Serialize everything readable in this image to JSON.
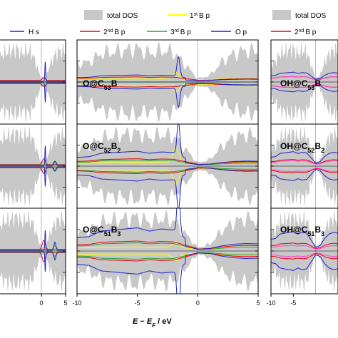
{
  "chart_data": {
    "type": "line",
    "xlabel": {
      "pre": "E",
      "dash": " − ",
      "e": "E",
      "sub": "F",
      "unit": " / eV"
    },
    "legend_left": {
      "row1": {
        "total": "",
        "hs": "H s"
      }
    },
    "legend_mid": {
      "total": "total DOS",
      "b1": {
        "pre": "1",
        "sup": "st",
        "post": "B p"
      },
      "b2": {
        "pre": "2",
        "sup": "nd",
        "post": "B p"
      },
      "b3": {
        "pre": "3",
        "sup": "rd",
        "post": "B p"
      },
      "op": "O p"
    },
    "legend_right": {
      "total": "total DOS",
      "b2": {
        "pre": "2",
        "sup": "nd",
        "post": "B p"
      }
    },
    "series_colors": {
      "total": "#c8c8c8",
      "b1": "#ffff00",
      "b2": "#e8000b",
      "b3": "#2ca02c",
      "op": "#1f1fcc",
      "hs": "#1f1fcc",
      "pink": "#ff44cc"
    },
    "columns": [
      {
        "name": "left",
        "xlim": [
          -10,
          5
        ],
        "ticks": [
          {
            "v": 0,
            "l": "0"
          },
          {
            "v": 5,
            "l": "5"
          }
        ]
      },
      {
        "name": "mid",
        "xlim": [
          -10,
          5
        ],
        "ticks": [
          {
            "v": -10,
            "l": "-10"
          },
          {
            "v": -5,
            "l": "-5"
          },
          {
            "v": 0,
            "l": "0"
          },
          {
            "v": 5,
            "l": "5"
          }
        ]
      },
      {
        "name": "right",
        "xlim": [
          -10,
          5
        ],
        "ticks": [
          {
            "v": -10,
            "l": "-10"
          },
          {
            "v": -5,
            "l": "-5"
          }
        ]
      }
    ],
    "panels": [
      {
        "col": "mid",
        "row": 0,
        "label": {
          "pre": "O@C",
          "s1": "53",
          "mid": "B",
          "s2": ""
        }
      },
      {
        "col": "mid",
        "row": 1,
        "label": {
          "pre": "O@C",
          "s1": "52",
          "mid": "B",
          "s2": "2"
        }
      },
      {
        "col": "mid",
        "row": 2,
        "label": {
          "pre": "O@C",
          "s1": "51",
          "mid": "B",
          "s2": "3"
        }
      },
      {
        "col": "right",
        "row": 0,
        "label": {
          "pre": "OH@C",
          "s1": "53",
          "mid": "B",
          "s2": ""
        }
      },
      {
        "col": "right",
        "row": 1,
        "label": {
          "pre": "OH@C",
          "s1": "52",
          "mid": "B",
          "s2": "2"
        }
      },
      {
        "col": "right",
        "row": 2,
        "label": {
          "pre": "OH@C",
          "s1": "51",
          "mid": "B",
          "s2": "3"
        }
      }
    ],
    "total_dos_envelope": {
      "x": [
        -10,
        -9,
        -8,
        -7,
        -6,
        -5,
        -4,
        -3,
        -2,
        -1,
        0,
        1,
        2,
        3,
        4,
        5
      ],
      "amp": [
        0.55,
        0.6,
        0.85,
        0.9,
        0.95,
        1.0,
        0.85,
        0.95,
        0.9,
        0.5,
        0.1,
        0.2,
        0.6,
        0.85,
        0.95,
        0.9
      ]
    },
    "fermi_line": 0
  }
}
